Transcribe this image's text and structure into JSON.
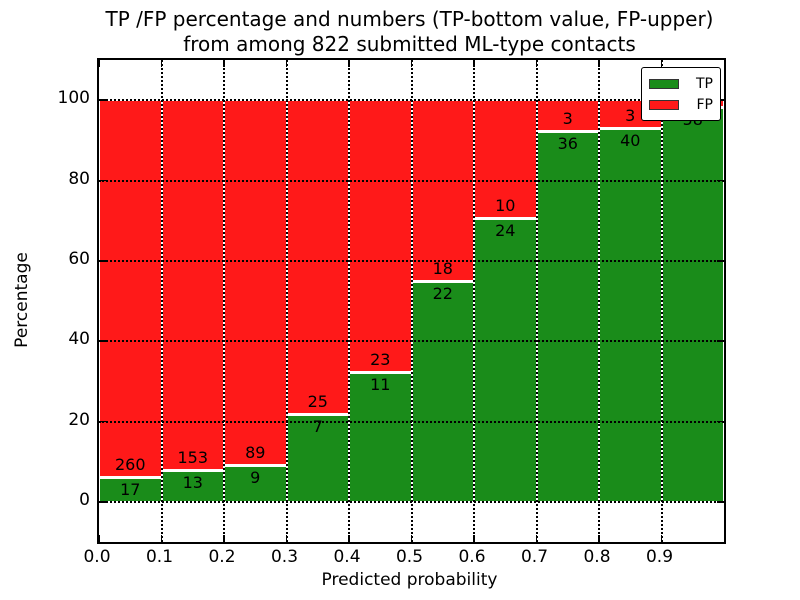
{
  "chart_data": {
    "type": "bar",
    "stacked": true,
    "title_line1": "TP /FP percentage and numbers (TP-bottom value, FP-upper)",
    "title_line2": "from among 822 submitted ML-type contacts",
    "xlabel": "Predicted probability",
    "ylabel": "Percentage",
    "total_contacts": 822,
    "xlim": [
      0.0,
      1.0
    ],
    "ylim": [
      -10,
      110
    ],
    "bin_width": 0.1,
    "x_tick_labels": [
      "0.0",
      "0.1",
      "0.2",
      "0.3",
      "0.4",
      "0.5",
      "0.6",
      "0.7",
      "0.8",
      "0.9"
    ],
    "y_tick_values": [
      0,
      20,
      40,
      60,
      80,
      100
    ],
    "y_tick_labels": [
      "0",
      "20",
      "40",
      "60",
      "80",
      "100"
    ],
    "grid": "dotted-black-on-top",
    "categories": [
      "0.0-0.1",
      "0.1-0.2",
      "0.2-0.3",
      "0.3-0.4",
      "0.4-0.5",
      "0.5-0.6",
      "0.6-0.7",
      "0.7-0.8",
      "0.8-0.9",
      "0.9-1.0"
    ],
    "series": [
      {
        "name": "TP",
        "color": "#1a8c1a",
        "counts": [
          17,
          13,
          9,
          7,
          11,
          22,
          24,
          36,
          40,
          58
        ]
      },
      {
        "name": "FP",
        "color": "#ff1919",
        "counts": [
          260,
          153,
          89,
          25,
          23,
          18,
          10,
          3,
          3,
          1
        ]
      }
    ],
    "tp_bar_labels": [
      "17",
      "13",
      "9",
      "7",
      "11",
      "22",
      "24",
      "36",
      "40",
      "58"
    ],
    "fp_bar_labels": [
      "260",
      "153",
      "89",
      "25",
      "23",
      "18",
      "10",
      "3",
      "3",
      ""
    ],
    "tp_percent_of_bin": [
      6.1,
      7.8,
      9.2,
      21.9,
      32.4,
      55.0,
      70.6,
      92.3,
      93.0,
      98.3
    ],
    "legend": {
      "position": "upper-right",
      "entries": [
        {
          "label": "TP",
          "color": "#1a8c1a"
        },
        {
          "label": "FP",
          "color": "#ff1919"
        }
      ]
    }
  }
}
